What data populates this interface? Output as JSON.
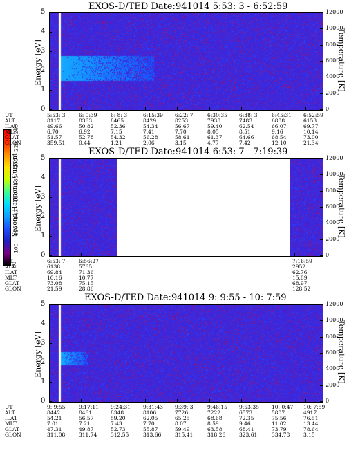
{
  "colorbar": {
    "title": "Second Harmonic Current",
    "ticks": [
      "80",
      "100",
      "120",
      "140",
      "160",
      "180",
      "200",
      "220",
      "240"
    ],
    "colors": [
      "#000000",
      "#7a0080",
      "#2020c0",
      "#1e50ff",
      "#10a0ff",
      "#00e0ff",
      "#40ff90",
      "#c8ff00",
      "#ffe000",
      "#ff9000",
      "#ff3000",
      "#ff0000"
    ]
  },
  "panels": [
    {
      "title": "EXOS-D/TED   Date:941014   5:53: 3 - 6:52:59",
      "ylabel": "Energy [eV]",
      "ylabel_right": "Temperature [K]",
      "yticks": [
        "5",
        "4",
        "3",
        "2",
        "1",
        "0"
      ],
      "yticks_right": [
        "12000",
        "10000",
        "8000",
        "6000",
        "4000",
        "2000",
        "0"
      ],
      "row_labels": [
        "UT",
        "ALT",
        "ILAT",
        "MLT",
        "GLAT",
        "GLON"
      ],
      "columns": [
        [
          "5:53: 3",
          "8117.",
          "49.66",
          "6.70",
          "51.57",
          "359.51"
        ],
        [
          "6: 0:39",
          "8363.",
          "50.82",
          "6.92",
          "52.78",
          "0.44"
        ],
        [
          "6: 8: 3",
          "8465.",
          "52.36",
          "7.15",
          "54.32",
          "1.21"
        ],
        [
          "6:15:39",
          "8429.",
          "54.34",
          "7.41",
          "56.28",
          "2.06"
        ],
        [
          "6:22: 7",
          "8253.",
          "56.67",
          "7.70",
          "58.61",
          "3.15"
        ],
        [
          "6:30:35",
          "7938.",
          "59.40",
          "8.05",
          "61.37",
          "4.77"
        ],
        [
          "6:38: 3",
          "7483.",
          "62.54",
          "8.51",
          "64.66",
          "7.42"
        ],
        [
          "6:45:31",
          "6888.",
          "66.07",
          "9.16",
          "68.54",
          "12.10"
        ],
        [
          "6:52:59",
          "6153.",
          "69.77",
          "10.14",
          "73.00",
          "21.34"
        ]
      ]
    },
    {
      "title": "EXOS-D/TED   Date:941014   6:53: 7 - 7:19:39",
      "ylabel": "Energy [eV]",
      "ylabel_right": "Temperature [K]",
      "yticks": [
        "5",
        "4",
        "3",
        "2",
        "1",
        "0"
      ],
      "yticks_right": [
        "12000",
        "10000",
        "8000",
        "6000",
        "4000",
        "2000",
        "0"
      ],
      "row_labels": [
        "UT",
        "ALT",
        "ILAT",
        "MLT",
        "GLAT",
        "GLON"
      ],
      "columns": [
        [
          "6:53: 7",
          "6138.",
          "69.84",
          "10.16",
          "73.08",
          "21.59"
        ],
        [
          "6:56:27",
          "5765.",
          "71.36",
          "10.77",
          "75.15",
          "28.86"
        ],
        [
          "7:16:59",
          "2952.",
          "62.76",
          "15.89",
          "68.97",
          "128.52"
        ]
      ]
    },
    {
      "title": "EXOS-D/TED   Date:941014   9: 9:55 - 10: 7:59",
      "ylabel": "Energy [eV]",
      "ylabel_right": "Temperature [K]",
      "yticks": [
        "5",
        "4",
        "3",
        "2",
        "1",
        "0"
      ],
      "yticks_right": [
        "12000",
        "10000",
        "8000",
        "6000",
        "4000",
        "2000",
        "0"
      ],
      "row_labels": [
        "UT",
        "ALT",
        "ILAT",
        "MLT",
        "GLAT",
        "GLON"
      ],
      "columns": [
        [
          "9: 9:55",
          "8442.",
          "54.21",
          "7.01",
          "47.31",
          "311.08"
        ],
        [
          "9:17:11",
          "8461.",
          "56.57",
          "7.21",
          "49.87",
          "311.74"
        ],
        [
          "9:24:31",
          "8348.",
          "59.20",
          "7.43",
          "52.73",
          "312.55"
        ],
        [
          "9:31:43",
          "8106.",
          "62.05",
          "7.70",
          "55.87",
          "313.66"
        ],
        [
          "9:39: 3",
          "7726.",
          "65.25",
          "8.07",
          "59.49",
          "315.41"
        ],
        [
          "9:46:15",
          "7222.",
          "68.68",
          "8.59",
          "63.58",
          "318.26"
        ],
        [
          "9:53:35",
          "6573.",
          "72.35",
          "9.46",
          "68.41",
          "323.61"
        ],
        [
          "10: 0:47",
          "5807.",
          "75.56",
          "11.02",
          "73.79",
          "334.78"
        ],
        [
          "10: 7:59",
          "4917.",
          "76.51",
          "13.44",
          "78.64",
          "3.15"
        ]
      ]
    }
  ],
  "chart_data": [
    {
      "type": "heatmap",
      "title": "EXOS-D/TED   Date:941014   5:53: 3 - 6:52:59",
      "xlabel": "UT",
      "ylabel": "Energy [eV]",
      "ylabel_right": "Temperature [K]",
      "x_ticks": [
        "5:53: 3",
        "6: 0:39",
        "6: 8: 3",
        "6:15:39",
        "6:22: 7",
        "6:30:35",
        "6:38: 3",
        "6:45:31",
        "6:52:59"
      ],
      "ylim": [
        0,
        5
      ],
      "ylim_right": [
        0,
        12000
      ],
      "colorbar_range": [
        80,
        240
      ],
      "features": [
        "enhanced band near 2 eV from 5:53 to ~6:16 UT"
      ]
    },
    {
      "type": "heatmap",
      "title": "EXOS-D/TED   Date:941014   6:53: 7 - 7:19:39",
      "xlabel": "UT",
      "ylabel": "Energy [eV]",
      "ylabel_right": "Temperature [K]",
      "x_ticks": [
        "6:53: 7",
        "6:56:27",
        "7:16:59"
      ],
      "ylim": [
        0,
        5
      ],
      "ylim_right": [
        0,
        12000
      ],
      "colorbar_range": [
        80,
        240
      ],
      "features": [
        "data gap from ~6:56 to ~7:17 UT"
      ]
    },
    {
      "type": "heatmap",
      "title": "EXOS-D/TED   Date:941014   9: 9:55 - 10: 7:59",
      "xlabel": "UT",
      "ylabel": "Energy [eV]",
      "ylabel_right": "Temperature [K]",
      "x_ticks": [
        "9: 9:55",
        "9:17:11",
        "9:24:31",
        "9:31:43",
        "9:39: 3",
        "9:46:15",
        "9:53:35",
        "10: 0:47",
        "10: 7:59"
      ],
      "ylim": [
        0,
        5
      ],
      "ylim_right": [
        0,
        12000
      ],
      "colorbar_range": [
        80,
        240
      ],
      "features": [
        "weak enhancement near 2.2 eV from 9:10 to ~9:17 UT"
      ]
    }
  ]
}
